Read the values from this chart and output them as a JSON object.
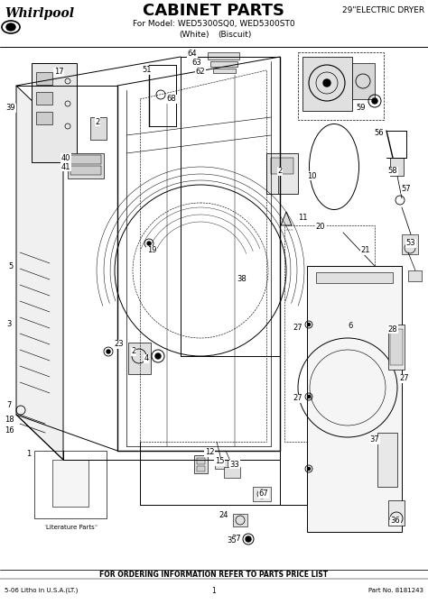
{
  "title": "CABINET PARTS",
  "subtitle1": "For Model: WED5300SQ0, WED5300ST0",
  "subtitle2_left": "(White)",
  "subtitle2_right": "(Biscuit)",
  "top_right": "29\"ELECTRIC DRYER",
  "footer_center": "FOR ORDERING INFORMATION REFER TO PARTS PRICE LIST",
  "footer_left": "5-06 Litho in U.S.A.(LT.)",
  "footer_mid": "1",
  "footer_right": "Part No. 8181243",
  "brand": "Whirlpool",
  "literature_label": "Literature Parts",
  "bg_color": "#ffffff"
}
